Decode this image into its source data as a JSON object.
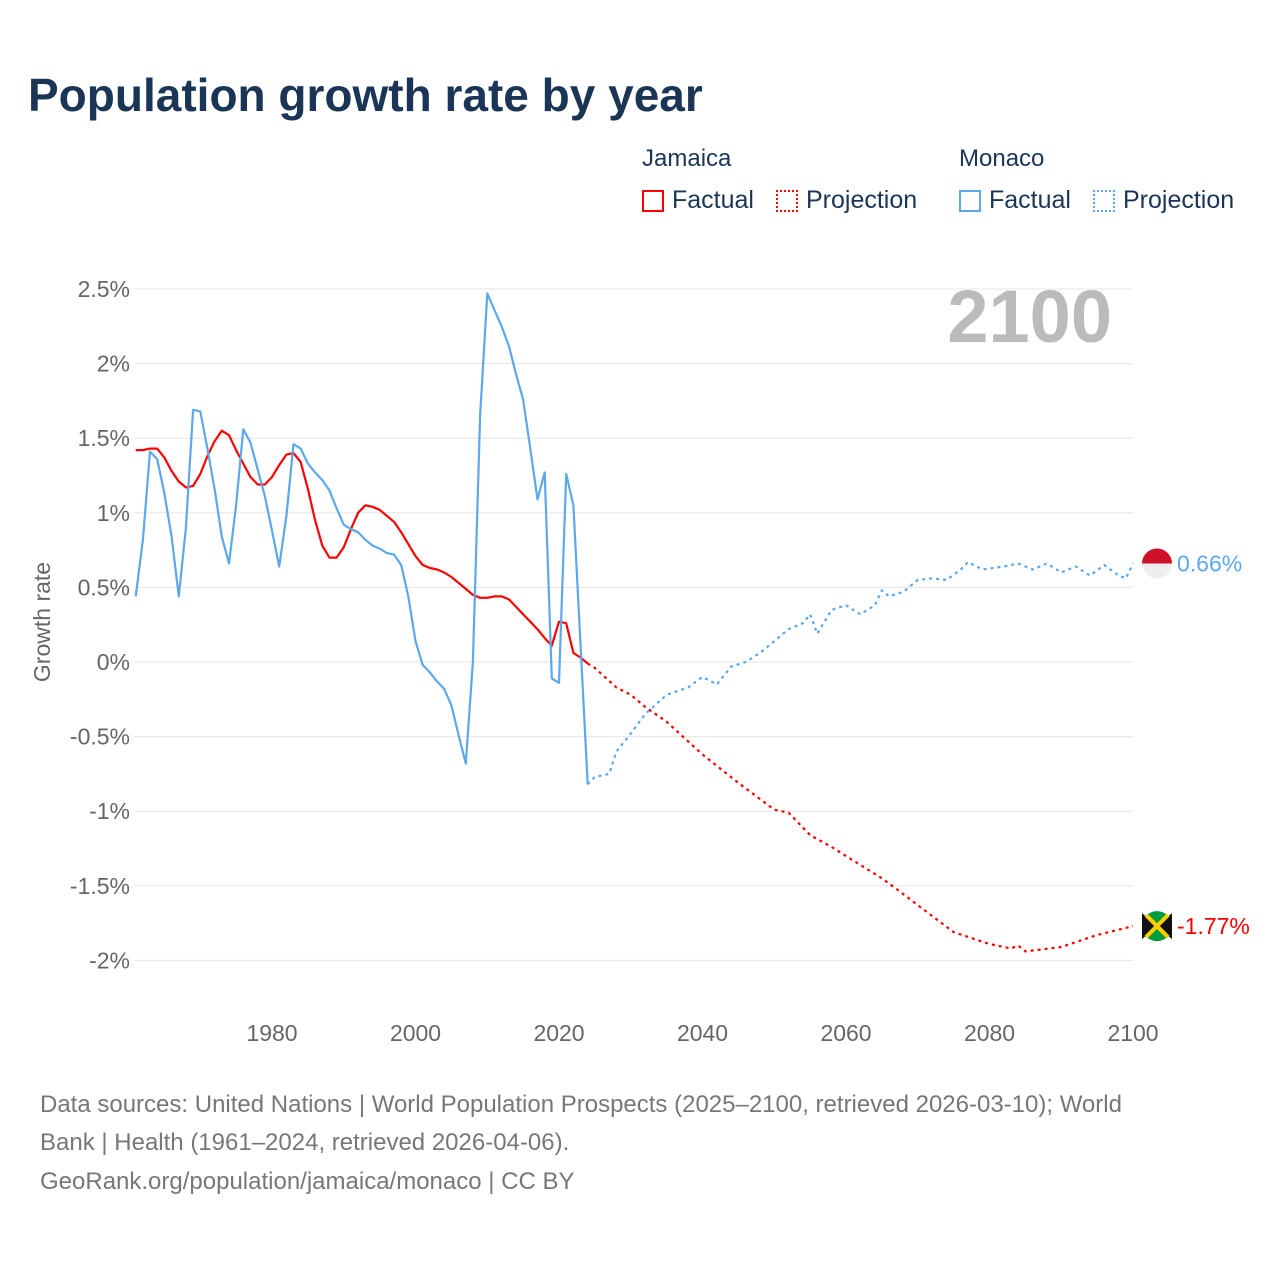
{
  "title": "Population growth rate by year",
  "legend": {
    "groups": [
      {
        "name": "Jamaica",
        "color": "#ff0000",
        "factual": "Factual",
        "projection": "Projection"
      },
      {
        "name": "Monaco",
        "color": "#5ca8ec",
        "factual": "Factual",
        "projection": "Projection"
      }
    ]
  },
  "chart_data": {
    "type": "line",
    "title": "Population growth rate by year",
    "ylabel": "Growth rate",
    "xlabel": "",
    "xlim": [
      1961,
      2100
    ],
    "ylim": [
      -2.3,
      2.7
    ],
    "x_ticks": [
      1980,
      2000,
      2020,
      2040,
      2060,
      2080,
      2100
    ],
    "x_tick_labels": [
      "1980",
      "2000",
      "2020",
      "2040",
      "2060",
      "2080",
      "2100"
    ],
    "y_ticks": [
      2.5,
      2,
      1.5,
      1,
      0.5,
      0,
      -0.5,
      -1,
      -1.5,
      -2
    ],
    "y_tick_labels": [
      "2.5%",
      "2%",
      "1.5%",
      "1%",
      "0.5%",
      "0%",
      "-0.5%",
      "-1%",
      "-1.5%",
      "-2%"
    ],
    "grid": true,
    "year_label": "2100",
    "series": [
      {
        "name": "Jamaica Factual",
        "color": "#ff0000",
        "dashed": false,
        "x_start": 1961,
        "values": [
          1.42,
          1.42,
          1.43,
          1.43,
          1.37,
          1.28,
          1.21,
          1.17,
          1.18,
          1.26,
          1.38,
          1.48,
          1.55,
          1.52,
          1.42,
          1.33,
          1.24,
          1.19,
          1.19,
          1.24,
          1.32,
          1.39,
          1.4,
          1.34,
          1.16,
          0.95,
          0.78,
          0.7,
          0.7,
          0.77,
          0.89,
          1.0,
          1.05,
          1.04,
          1.02,
          0.98,
          0.94,
          0.87,
          0.79,
          0.71,
          0.65,
          0.63,
          0.62,
          0.6,
          0.57,
          0.53,
          0.49,
          0.45,
          0.43,
          0.43,
          0.44,
          0.44,
          0.42,
          0.37,
          0.32,
          0.27,
          0.22,
          0.16,
          0.11,
          0.27,
          0.26,
          0.06,
          0.03,
          -0.01
        ]
      },
      {
        "name": "Jamaica Projection",
        "color": "#ff0000",
        "dashed": true,
        "x": [
          2024,
          2025,
          2028,
          2030,
          2032,
          2035,
          2040,
          2045,
          2050,
          2052,
          2055,
          2058,
          2060,
          2065,
          2067,
          2070,
          2075,
          2080,
          2083,
          2084,
          2085,
          2090,
          2095,
          2100
        ],
        "values": [
          -0.01,
          -0.04,
          -0.17,
          -0.22,
          -0.3,
          -0.4,
          -0.62,
          -0.81,
          -0.99,
          -1.01,
          -1.16,
          -1.24,
          -1.3,
          -1.45,
          -1.52,
          -1.63,
          -1.81,
          -1.89,
          -1.92,
          -1.9,
          -1.94,
          -1.91,
          -1.83,
          -1.77
        ]
      },
      {
        "name": "Monaco Factual",
        "color": "#5ca8ec",
        "dashed": false,
        "x_start": 1961,
        "values": [
          0.44,
          0.82,
          1.41,
          1.36,
          1.13,
          0.84,
          0.44,
          0.9,
          1.69,
          1.68,
          1.43,
          1.16,
          0.84,
          0.66,
          1.05,
          1.56,
          1.47,
          1.29,
          1.11,
          0.88,
          0.64,
          0.98,
          1.46,
          1.43,
          1.33,
          1.27,
          1.22,
          1.15,
          1.03,
          0.92,
          0.89,
          0.87,
          0.82,
          0.78,
          0.76,
          0.73,
          0.72,
          0.65,
          0.44,
          0.14,
          -0.02,
          -0.07,
          -0.13,
          -0.18,
          -0.29,
          -0.49,
          -0.68,
          0.0,
          1.65,
          2.47,
          2.36,
          2.25,
          2.12,
          1.93,
          1.76,
          1.43,
          1.09,
          1.27,
          -0.11,
          -0.14,
          1.26,
          1.05,
          0.12,
          -0.82
        ]
      },
      {
        "name": "Monaco Projection",
        "color": "#5ca8ec",
        "dashed": true,
        "x": [
          2024,
          2025,
          2027,
          2028,
          2030,
          2032,
          2035,
          2038,
          2040,
          2042,
          2044,
          2046,
          2048,
          2050,
          2052,
          2054,
          2055,
          2056,
          2058,
          2060,
          2062,
          2064,
          2065,
          2066,
          2068,
          2070,
          2072,
          2074,
          2076,
          2077,
          2079,
          2082,
          2084,
          2086,
          2088,
          2090,
          2092,
          2094,
          2096,
          2098,
          2099,
          2100
        ],
        "values": [
          -0.82,
          -0.77,
          -0.75,
          -0.6,
          -0.48,
          -0.35,
          -0.22,
          -0.17,
          -0.1,
          -0.15,
          -0.03,
          0.0,
          0.06,
          0.14,
          0.22,
          0.26,
          0.32,
          0.19,
          0.35,
          0.38,
          0.32,
          0.38,
          0.48,
          0.44,
          0.47,
          0.55,
          0.56,
          0.55,
          0.62,
          0.67,
          0.62,
          0.64,
          0.66,
          0.62,
          0.66,
          0.6,
          0.64,
          0.58,
          0.65,
          0.58,
          0.56,
          0.66
        ]
      }
    ],
    "end_labels": [
      {
        "country": "Monaco",
        "text": "0.66%",
        "value": 0.66,
        "color": "#5ca8ec"
      },
      {
        "country": "Jamaica",
        "text": "-1.77%",
        "value": -1.77,
        "color": "#ff0000"
      }
    ]
  },
  "footer": {
    "line1": "Data sources: United Nations | World Population Prospects (2025–2100, retrieved 2026-03-10); World",
    "line2": "Bank | Health (1961–2024, retrieved 2026-04-06).",
    "line3": "GeoRank.org/population/jamaica/monaco | CC BY"
  }
}
